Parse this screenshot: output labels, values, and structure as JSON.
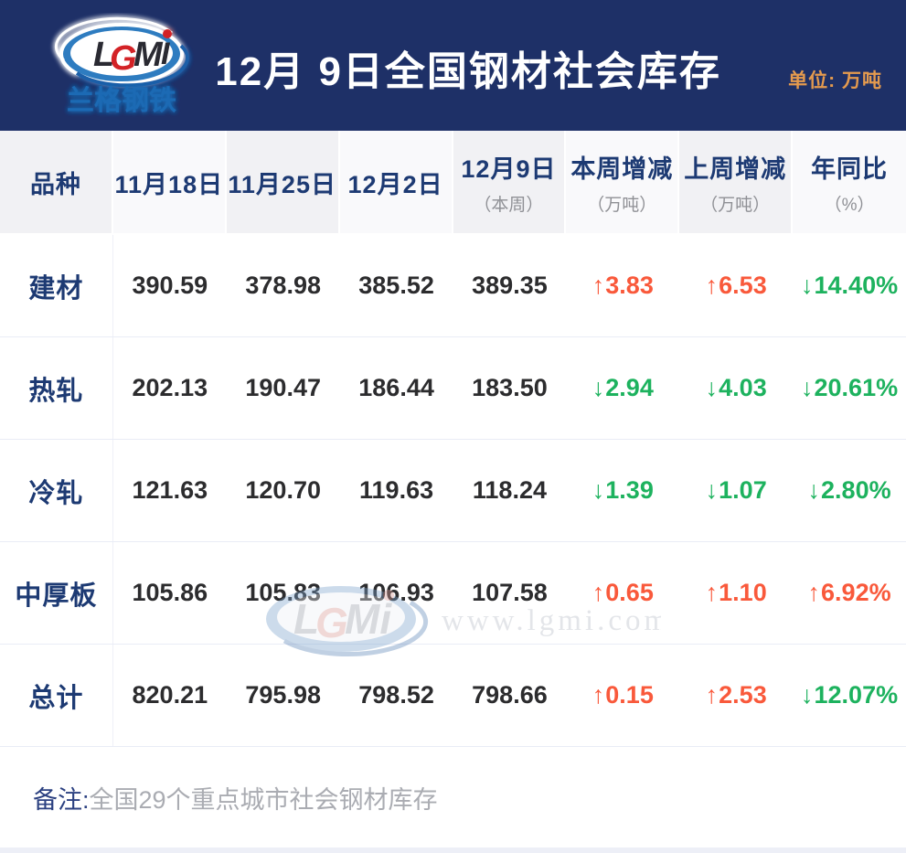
{
  "header": {
    "logo_text": "LGMi",
    "logo_subtext": "兰格钢铁",
    "title": "12月 9日全国钢材社会库存",
    "unit_label": "单位: 万吨",
    "bg_color": "#1e3067",
    "unit_color": "#e49a4e"
  },
  "table": {
    "columns": [
      {
        "label": "品种",
        "sub": ""
      },
      {
        "label": "11月18日",
        "sub": ""
      },
      {
        "label": "11月25日",
        "sub": ""
      },
      {
        "label": "12月2日",
        "sub": ""
      },
      {
        "label": "12月9日",
        "sub": "（本周）"
      },
      {
        "label": "本周增减",
        "sub": "（万吨）"
      },
      {
        "label": "上周增减",
        "sub": "（万吨）"
      },
      {
        "label": "年同比",
        "sub": "（%）"
      }
    ],
    "rows": [
      {
        "name": "建材",
        "values": [
          "390.59",
          "378.98",
          "385.52",
          "389.35"
        ],
        "changes": [
          {
            "dir": "up",
            "text": "3.83"
          },
          {
            "dir": "up",
            "text": "6.53"
          },
          {
            "dir": "down",
            "text": "14.40%"
          }
        ]
      },
      {
        "name": "热轧",
        "values": [
          "202.13",
          "190.47",
          "186.44",
          "183.50"
        ],
        "changes": [
          {
            "dir": "down",
            "text": "2.94"
          },
          {
            "dir": "down",
            "text": "4.03"
          },
          {
            "dir": "down",
            "text": "20.61%"
          }
        ]
      },
      {
        "name": "冷轧",
        "values": [
          "121.63",
          "120.70",
          "119.63",
          "118.24"
        ],
        "changes": [
          {
            "dir": "down",
            "text": "1.39"
          },
          {
            "dir": "down",
            "text": "1.07"
          },
          {
            "dir": "down",
            "text": "2.80%"
          }
        ]
      },
      {
        "name": "中厚板",
        "values": [
          "105.86",
          "105.83",
          "106.93",
          "107.58"
        ],
        "changes": [
          {
            "dir": "up",
            "text": "0.65"
          },
          {
            "dir": "up",
            "text": "1.10"
          },
          {
            "dir": "up",
            "text": "6.92%"
          }
        ]
      },
      {
        "name": "总计",
        "values": [
          "820.21",
          "795.98",
          "798.52",
          "798.66"
        ],
        "changes": [
          {
            "dir": "up",
            "text": "0.15"
          },
          {
            "dir": "up",
            "text": "2.53"
          },
          {
            "dir": "down",
            "text": "12.07%"
          }
        ]
      }
    ],
    "up_arrow": "↑",
    "down_arrow": "↓",
    "up_color": "#f9593b",
    "down_color": "#1db25e"
  },
  "watermark": {
    "logo_text": "LGMi",
    "url_text": "www.lgmi.com"
  },
  "note": {
    "label": "备注:",
    "text": "全国29个重点城市社会钢材库存"
  },
  "chart_data": {
    "type": "table",
    "title": "12月 9日全国钢材社会库存",
    "unit": "万吨",
    "columns": [
      "品种",
      "11月18日",
      "11月25日",
      "12月2日",
      "12月9日（本周）",
      "本周增减（万吨）",
      "上周增减（万吨）",
      "年同比（%）"
    ],
    "rows": [
      [
        "建材",
        390.59,
        378.98,
        385.52,
        389.35,
        "+3.83",
        "+6.53",
        "-14.40%"
      ],
      [
        "热轧",
        202.13,
        190.47,
        186.44,
        183.5,
        "-2.94",
        "-4.03",
        "-20.61%"
      ],
      [
        "冷轧",
        121.63,
        120.7,
        119.63,
        118.24,
        "-1.39",
        "-1.07",
        "-2.80%"
      ],
      [
        "中厚板",
        105.86,
        105.83,
        106.93,
        107.58,
        "+0.65",
        "+1.10",
        "+6.92%"
      ],
      [
        "总计",
        820.21,
        795.98,
        798.52,
        798.66,
        "+0.15",
        "+2.53",
        "-12.07%"
      ]
    ],
    "note": "备注:全国29个重点城市社会钢材库存"
  }
}
